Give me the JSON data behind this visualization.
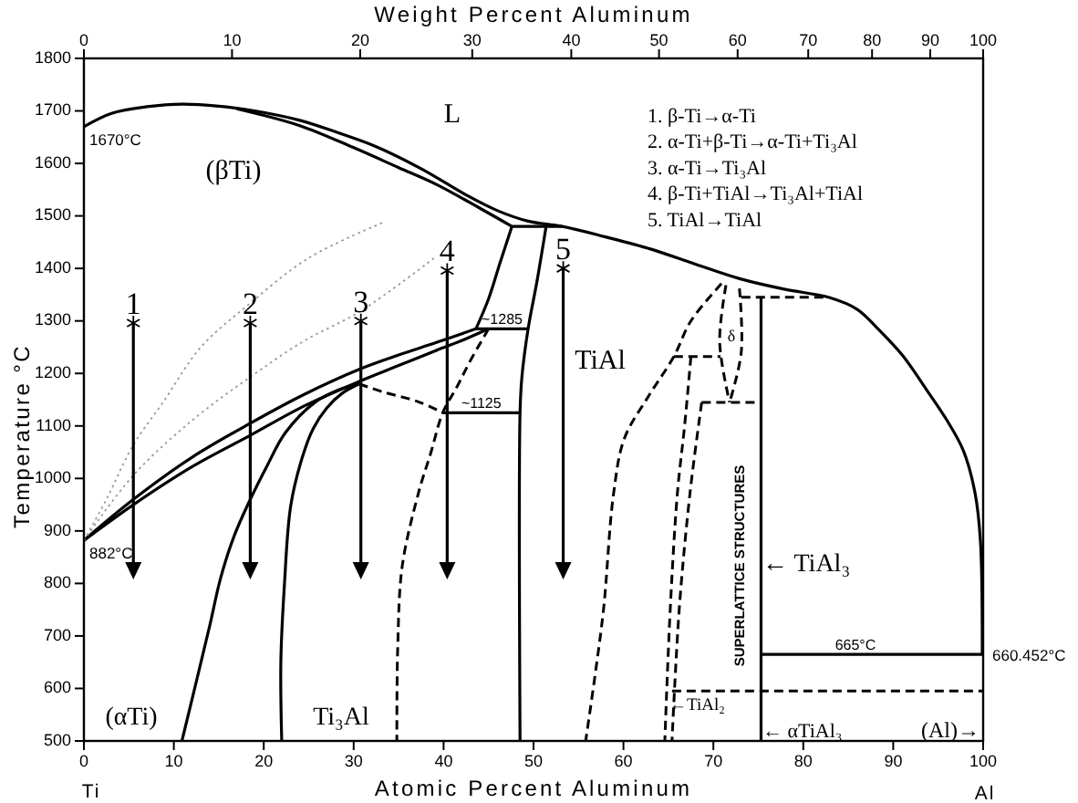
{
  "chart_data": {
    "type": "line",
    "xlabel": "Atomic Percent Aluminum",
    "x2label": "Weight Percent Aluminum",
    "ylabel": "Temperature °C",
    "xlim": [
      0,
      100
    ],
    "xticks": [
      0,
      10,
      20,
      30,
      40,
      50,
      60,
      70,
      80,
      90,
      100
    ],
    "ylim": [
      500,
      1800
    ],
    "yticks": [
      500,
      600,
      700,
      800,
      900,
      1000,
      1100,
      1200,
      1300,
      1400,
      1500,
      1600,
      1700,
      1800
    ],
    "line_style": "solid",
    "series": [
      {
        "color": "#000000",
        "x": [
          0,
          3,
          7,
          11,
          15,
          19,
          24,
          28,
          32.5,
          37.5,
          42.6,
          46,
          49.4,
          53.2,
          58,
          63,
          68,
          73,
          78,
          82.8,
          86,
          88.3,
          91,
          93.7,
          96,
          97.8,
          99.1,
          99.7,
          99.9
        ],
        "values": [
          1670,
          1695,
          1708,
          1713,
          1709,
          1700,
          1682,
          1660,
          1632,
          1590,
          1539,
          1510,
          1490,
          1480,
          1460,
          1437,
          1408,
          1380,
          1360,
          1345,
          1322,
          1285,
          1235,
          1169,
          1110,
          1053,
          972,
          880,
          665
        ]
      },
      {
        "color": "#000000",
        "x": [
          17,
          24,
          30,
          35,
          39.2,
          44,
          47.6
        ],
        "values": [
          1704,
          1672,
          1630,
          1592,
          1560,
          1515,
          1480
        ]
      },
      {
        "color": "#000000",
        "x": [
          47.6,
          53.2
        ],
        "values": [
          1480,
          1480
        ]
      },
      {
        "color": "#000000",
        "x": [
          47.6,
          46.3,
          45,
          43.6
        ],
        "values": [
          1480,
          1412,
          1342,
          1285
        ]
      },
      {
        "color": "#000000",
        "x": [
          51.4,
          50.4,
          49.4,
          48.7,
          48.5,
          48.5
        ],
        "values": [
          1480,
          1377,
          1285,
          1192,
          1125,
          500
        ]
      },
      {
        "color": "#000000",
        "x": [
          43.6,
          49.4
        ],
        "values": [
          1285,
          1285
        ]
      },
      {
        "color": "#000000",
        "x": [
          0,
          5.5,
          12,
          18.5,
          24.5,
          30.8,
          35,
          39.2,
          43.6
        ],
        "values": [
          882,
          960,
          1040,
          1105,
          1160,
          1209,
          1235,
          1259,
          1285
        ]
      },
      {
        "color": "#000000",
        "x": [
          0,
          5.5,
          12,
          18.5,
          24.5,
          30.8,
          35,
          39.2,
          42.5,
          45
        ],
        "values": [
          882,
          950,
          1022,
          1082,
          1138,
          1186,
          1215,
          1244,
          1266,
          1285
        ]
      },
      {
        "color": "#000000",
        "x": [
          10.9,
          12.6,
          14,
          15.2,
          16.7,
          18.5,
          20.4,
          22.4,
          25.7,
          28.4,
          30.6
        ],
        "values": [
          500,
          620,
          720,
          810,
          890,
          960,
          1025,
          1087,
          1145,
          1169,
          1180
        ]
      },
      {
        "color": "#000000",
        "x": [
          22,
          21.9,
          22.3,
          23,
          24.3,
          25.5,
          27,
          28.7,
          30.6
        ],
        "values": [
          500,
          650,
          798,
          948,
          1041,
          1095,
          1134,
          1162,
          1180
        ]
      },
      {
        "color": "#000000",
        "line_style": "dashed",
        "x": [
          30.6,
          33.2,
          37.2,
          39.9
        ],
        "values": [
          1180,
          1165,
          1146,
          1125
        ]
      },
      {
        "color": "#000000",
        "x": [
          39.9,
          48.5
        ],
        "values": [
          1125,
          1125
        ]
      },
      {
        "color": "#000000",
        "line_style": "dashed",
        "x": [
          45,
          43,
          41.5,
          39.9,
          38.6,
          37.2,
          35.4,
          34.9,
          34.8
        ],
        "values": [
          1285,
          1225,
          1175,
          1125,
          1050,
          972,
          833,
          680,
          500
        ]
      },
      {
        "color": "#000000",
        "line_style": "dashed",
        "x": [
          70.9,
          67.5,
          65.6,
          62.8,
          60.1,
          58.9,
          57.8,
          56.8,
          55.8
        ],
        "values": [
          1371,
          1300,
          1232,
          1157,
          1076,
          971,
          753,
          620,
          500
        ]
      },
      {
        "color": "#000000",
        "line_style": "dashed",
        "x": [
          65.6,
          70.8
        ],
        "values": [
          1232,
          1232
        ]
      },
      {
        "color": "#000000",
        "line_style": "dashed",
        "x": [
          71.4,
          70.7,
          71.8
        ],
        "values": [
          1368,
          1260,
          1145
        ]
      },
      {
        "color": "#000000",
        "line_style": "dashed",
        "x": [
          72.9,
          73.1,
          71.8
        ],
        "values": [
          1362,
          1240,
          1145
        ]
      },
      {
        "color": "#000000",
        "line_style": "dashed",
        "x": [
          67.5,
          66.8,
          66,
          65.2,
          64.6
        ],
        "values": [
          1232,
          1100,
          972,
          750,
          500
        ]
      },
      {
        "color": "#000000",
        "line_style": "dashed",
        "x": [
          68.7,
          67.4,
          66.2,
          65.4
        ],
        "values": [
          1145,
          972,
          750,
          500
        ]
      },
      {
        "color": "#000000",
        "line_style": "dashed",
        "x": [
          68.7,
          75.3
        ],
        "values": [
          1145,
          1145
        ]
      },
      {
        "color": "#000000",
        "x": [
          75.3,
          75.3
        ],
        "values": [
          1345,
          500
        ]
      },
      {
        "color": "#000000",
        "line_style": "dashed",
        "x": [
          73.1,
          82.8
        ],
        "values": [
          1345,
          1345
        ]
      },
      {
        "color": "#000000",
        "line_style": "dashed",
        "x": [
          65.4,
          100
        ],
        "values": [
          595,
          595
        ]
      },
      {
        "color": "#000000",
        "x": [
          75.3,
          100
        ],
        "values": [
          665,
          665
        ]
      },
      {
        "color": "#9a9a9a",
        "line_style": "dotted",
        "x": [
          0,
          2.5,
          5.5,
          8.8,
          13,
          18.3,
          25,
          33.2
        ],
        "values": [
          882,
          960,
          1064,
          1145,
          1250,
          1331,
          1420,
          1487
        ]
      },
      {
        "color": "#9a9a9a",
        "line_style": "dotted",
        "x": [
          0,
          5.5,
          12,
          18.4,
          24.5,
          30.8,
          39.2
        ],
        "values": [
          882,
          1006,
          1110,
          1192,
          1262,
          1319,
          1423
        ]
      },
      {
        "color": "#000000",
        "x": [
          5.5,
          5.5
        ],
        "values": [
          1296,
          825
        ]
      },
      {
        "color": "#000000",
        "x": [
          18.5,
          18.5
        ],
        "values": [
          1296,
          825
        ]
      },
      {
        "color": "#000000",
        "x": [
          30.8,
          30.8
        ],
        "values": [
          1300,
          825
        ]
      },
      {
        "color": "#000000",
        "x": [
          40.4,
          40.4
        ],
        "values": [
          1396,
          825
        ]
      },
      {
        "color": "#000000",
        "x": [
          53.3,
          53.3
        ],
        "values": [
          1400,
          825
        ]
      },
      {
        "type": "scatter",
        "marker": "cross",
        "color": "#000000",
        "x": [
          5.5,
          18.5,
          30.8,
          40.4,
          53.3
        ],
        "values": [
          1296,
          1296,
          1300,
          1396,
          1400
        ]
      },
      {
        "type": "scatter",
        "marker": "triangle",
        "color": "#000000",
        "x": [
          5.5,
          18.5,
          30.8,
          40.4,
          53.3
        ],
        "values": [
          825,
          825,
          825,
          825,
          825
        ]
      }
    ],
    "annotations": [
      "1. β-Ti→α-Ti",
      "2. α-Ti+β-Ti→α-Ti+Ti₃Al",
      "3. α-Ti→Ti₃Al",
      "4. β-Ti+TiAl→Ti₃Al+TiAl",
      "5. TiAl→TiAl",
      "L",
      "(βTi)",
      "δ",
      "TiAl",
      "(αTi)",
      "Ti₃Al",
      "← TiAl₃",
      "←TiAl₂",
      "← αTiAl₃",
      "(Al)→",
      "SUPERLATTICE STRUCTURES",
      "Ti",
      "Al",
      "0",
      "10",
      "20",
      "30",
      "40",
      "50",
      "60",
      "70",
      "80",
      "90",
      "100",
      {
        "text": "1",
        "x": 5.5,
        "y": 1296
      },
      {
        "text": "2",
        "x": 18.5,
        "y": 1296
      },
      {
        "text": "3",
        "x": 30.8,
        "y": 1300
      },
      {
        "text": "4",
        "x": 40.4,
        "y": 1396
      },
      {
        "text": "5",
        "x": 53.3,
        "y": 1400
      },
      {
        "text": "1670°C",
        "x": 0,
        "y": 1670
      },
      {
        "text": "882°C",
        "x": 0,
        "y": 882
      },
      {
        "text": "~1285",
        "x": 46.5,
        "y": 1285
      },
      {
        "text": "~1125",
        "x": 44.2,
        "y": 1125
      },
      {
        "text": "665°C",
        "x": 85.8,
        "y": 665
      },
      {
        "text": "660.452°C",
        "x": 100,
        "y": 660.452
      }
    ]
  }
}
